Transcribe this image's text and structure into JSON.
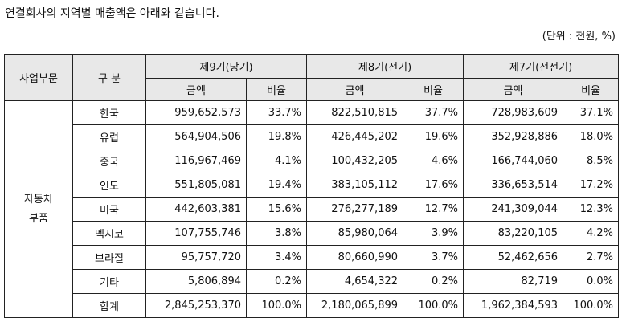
{
  "intro": "연결회사의 지역별 매출액은 아래와 같습니다.",
  "unit_note": "(단위 : 천원, %)",
  "table": {
    "header": {
      "segment": "사업부문",
      "division": "구 분",
      "periods": [
        "제9기(당기)",
        "제8기(전기)",
        "제7기(전전기)"
      ],
      "amount": "금액",
      "ratio": "비율"
    },
    "segment_lines": [
      "자동차",
      "부품"
    ],
    "rows": [
      {
        "region": "한국",
        "v": [
          "959,652,573",
          "33.7%",
          "822,510,815",
          "37.7%",
          "728,983,609",
          "37.1%"
        ]
      },
      {
        "region": "유럽",
        "v": [
          "564,904,506",
          "19.8%",
          "426,445,202",
          "19.6%",
          "352,928,886",
          "18.0%"
        ]
      },
      {
        "region": "중국",
        "v": [
          "116,967,469",
          "4.1%",
          "100,432,205",
          "4.6%",
          "166,744,060",
          "8.5%"
        ]
      },
      {
        "region": "인도",
        "v": [
          "551,805,081",
          "19.4%",
          "383,105,112",
          "17.6%",
          "336,653,514",
          "17.2%"
        ]
      },
      {
        "region": "미국",
        "v": [
          "442,603,381",
          "15.6%",
          "276,277,189",
          "12.7%",
          "241,309,044",
          "12.3%"
        ]
      },
      {
        "region": "멕시코",
        "v": [
          "107,755,746",
          "3.8%",
          "85,980,064",
          "3.9%",
          "83,220,105",
          "4.2%"
        ]
      },
      {
        "region": "브라질",
        "v": [
          "95,757,720",
          "3.4%",
          "80,660,990",
          "3.7%",
          "52,462,656",
          "2.7%"
        ]
      },
      {
        "region": "기타",
        "v": [
          "5,806,894",
          "0.2%",
          "4,654,322",
          "0.2%",
          "82,719",
          "0.0%"
        ]
      },
      {
        "region": "합계",
        "v": [
          "2,845,253,370",
          "100.0%",
          "2,180,065,899",
          "100.0%",
          "1,962,384,593",
          "100.0%"
        ]
      }
    ]
  }
}
